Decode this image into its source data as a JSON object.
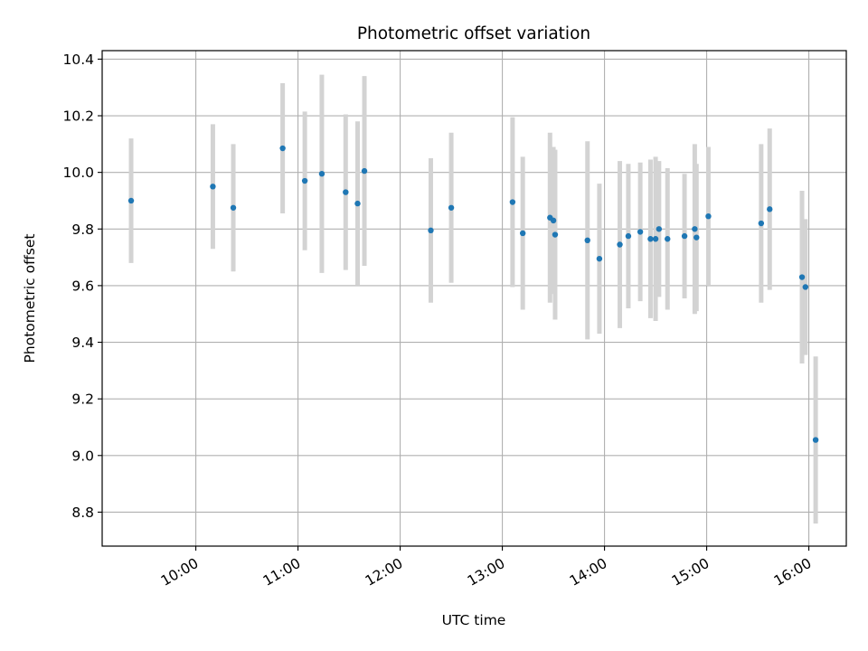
{
  "chart_data": {
    "type": "scatter",
    "title": "Photometric offset variation",
    "xlabel": "UTC time",
    "ylabel": "Photometric offset",
    "grid": true,
    "x_ticks": [
      "10:00",
      "11:00",
      "12:00",
      "13:00",
      "14:00",
      "15:00",
      "16:00"
    ],
    "y_ticks": [
      "8.8",
      "9.0",
      "9.2",
      "9.4",
      "9.6",
      "9.8",
      "10.0",
      "10.2",
      "10.4"
    ],
    "xlim": [
      "09:05",
      "16:22"
    ],
    "ylim": [
      8.68,
      10.43
    ],
    "colors": {
      "point": "#1f77b4",
      "errorbar": "#d3d3d3",
      "grid": "#b0b0b0"
    },
    "points": [
      {
        "x": "09:22",
        "y": 9.9,
        "err_low": 0.22,
        "err_high": 0.22
      },
      {
        "x": "10:10",
        "y": 9.95,
        "err_low": 0.22,
        "err_high": 0.22
      },
      {
        "x": "10:22",
        "y": 9.875,
        "err_low": 0.225,
        "err_high": 0.225
      },
      {
        "x": "10:51",
        "y": 10.085,
        "err_low": 0.23,
        "err_high": 0.23
      },
      {
        "x": "11:04",
        "y": 9.97,
        "err_low": 0.245,
        "err_high": 0.245
      },
      {
        "x": "11:14",
        "y": 9.995,
        "err_low": 0.35,
        "err_high": 0.35
      },
      {
        "x": "11:28",
        "y": 9.93,
        "err_low": 0.275,
        "err_high": 0.275
      },
      {
        "x": "11:35",
        "y": 9.89,
        "err_low": 0.29,
        "err_high": 0.29
      },
      {
        "x": "11:39",
        "y": 10.005,
        "err_low": 0.335,
        "err_high": 0.335
      },
      {
        "x": "12:18",
        "y": 9.795,
        "err_low": 0.255,
        "err_high": 0.255
      },
      {
        "x": "12:30",
        "y": 9.875,
        "err_low": 0.265,
        "err_high": 0.265
      },
      {
        "x": "13:06",
        "y": 9.895,
        "err_low": 0.3,
        "err_high": 0.3
      },
      {
        "x": "13:12",
        "y": 9.785,
        "err_low": 0.27,
        "err_high": 0.27
      },
      {
        "x": "13:28",
        "y": 9.84,
        "err_low": 0.3,
        "err_high": 0.3
      },
      {
        "x": "13:30",
        "y": 9.83,
        "err_low": 0.26,
        "err_high": 0.26
      },
      {
        "x": "13:31",
        "y": 9.78,
        "err_low": 0.3,
        "err_high": 0.3
      },
      {
        "x": "13:50",
        "y": 9.76,
        "err_low": 0.35,
        "err_high": 0.35
      },
      {
        "x": "13:57",
        "y": 9.695,
        "err_low": 0.265,
        "err_high": 0.265
      },
      {
        "x": "14:09",
        "y": 9.745,
        "err_low": 0.295,
        "err_high": 0.295
      },
      {
        "x": "14:14",
        "y": 9.775,
        "err_low": 0.255,
        "err_high": 0.255
      },
      {
        "x": "14:21",
        "y": 9.79,
        "err_low": 0.245,
        "err_high": 0.245
      },
      {
        "x": "14:27",
        "y": 9.765,
        "err_low": 0.28,
        "err_high": 0.28
      },
      {
        "x": "14:30",
        "y": 9.765,
        "err_low": 0.29,
        "err_high": 0.29
      },
      {
        "x": "14:32",
        "y": 9.8,
        "err_low": 0.24,
        "err_high": 0.24
      },
      {
        "x": "14:37",
        "y": 9.765,
        "err_low": 0.25,
        "err_high": 0.25
      },
      {
        "x": "14:47",
        "y": 9.775,
        "err_low": 0.22,
        "err_high": 0.22
      },
      {
        "x": "14:53",
        "y": 9.8,
        "err_low": 0.3,
        "err_high": 0.3
      },
      {
        "x": "14:54",
        "y": 9.77,
        "err_low": 0.26,
        "err_high": 0.26
      },
      {
        "x": "15:01",
        "y": 9.845,
        "err_low": 0.245,
        "err_high": 0.245
      },
      {
        "x": "15:32",
        "y": 9.82,
        "err_low": 0.28,
        "err_high": 0.28
      },
      {
        "x": "15:37",
        "y": 9.87,
        "err_low": 0.285,
        "err_high": 0.285
      },
      {
        "x": "15:56",
        "y": 9.63,
        "err_low": 0.305,
        "err_high": 0.305
      },
      {
        "x": "15:58",
        "y": 9.595,
        "err_low": 0.24,
        "err_high": 0.24
      },
      {
        "x": "16:04",
        "y": 9.055,
        "err_low": 0.295,
        "err_high": 0.295
      }
    ]
  }
}
